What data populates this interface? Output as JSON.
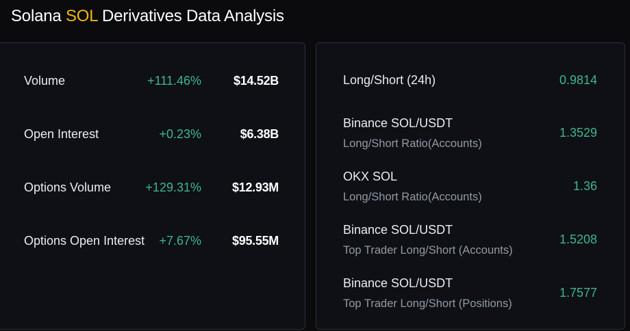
{
  "header": {
    "title_prefix": "Solana ",
    "title_symbol": "SOL",
    "title_suffix": " Derivatives Data Analysis"
  },
  "left_panel": {
    "rows": [
      {
        "label": "Volume",
        "change": "+111.46%",
        "value": "$14.52B"
      },
      {
        "label": "Open Interest",
        "change": "+0.23%",
        "value": "$6.38B"
      },
      {
        "label": "Options Volume",
        "change": "+129.31%",
        "value": "$12.93M"
      },
      {
        "label": "Options Open Interest",
        "change": "+7.67%",
        "value": "$95.55M"
      }
    ]
  },
  "right_panel": {
    "rows": [
      {
        "label": "Long/Short (24h)",
        "sublabel": "",
        "value": "0.9814"
      },
      {
        "label": "Binance SOL/USDT",
        "sublabel": "Long/Short Ratio(Accounts)",
        "value": "1.3529"
      },
      {
        "label": "OKX SOL",
        "sublabel": "Long/Short Ratio(Accounts)",
        "value": "1.36"
      },
      {
        "label": "Binance SOL/USDT",
        "sublabel": "Top Trader Long/Short (Accounts)",
        "value": "1.5208"
      },
      {
        "label": "Binance SOL/USDT",
        "sublabel": "Top Trader Long/Short (Positions)",
        "value": "1.7577"
      }
    ]
  },
  "colors": {
    "background": "#0b0b0e",
    "panel": "#0e1016",
    "border": "#2b2f36",
    "positive": "#3fb68b",
    "brand": "#f0b90b",
    "muted": "#929aa5"
  }
}
